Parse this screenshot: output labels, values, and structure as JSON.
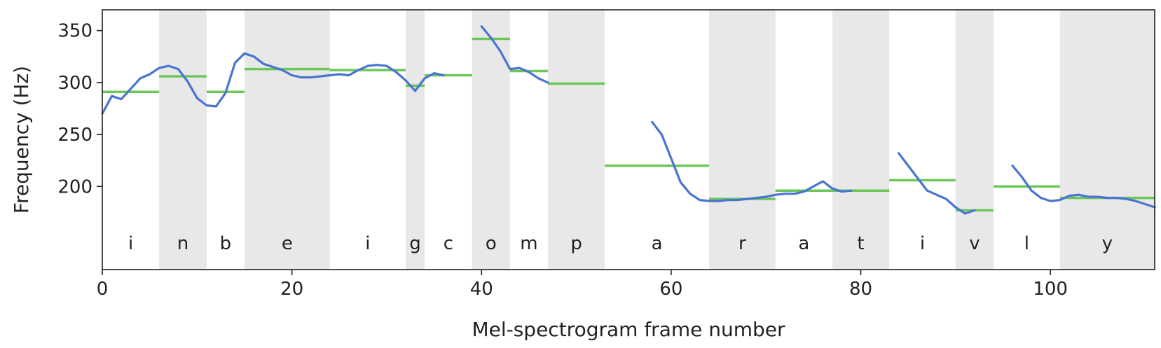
{
  "chart_data": {
    "type": "line",
    "title": "",
    "xlabel": "Mel-spectrogram frame number",
    "ylabel": "Frequency (Hz)",
    "xlim": [
      0,
      111
    ],
    "ylim": [
      120,
      370
    ],
    "x_ticks": [
      0,
      20,
      40,
      60,
      80,
      100
    ],
    "y_ticks": [
      200,
      250,
      300,
      350
    ],
    "grid": false,
    "colors": {
      "f0_line": "#4a74d1",
      "phone_mean": "#6cc75a",
      "shade": "#e8e8e8"
    },
    "segments": [
      {
        "label": "i",
        "start": 0,
        "end": 6,
        "shaded": false,
        "mean": 291
      },
      {
        "label": "n",
        "start": 6,
        "end": 11,
        "shaded": true,
        "mean": 306
      },
      {
        "label": "b",
        "start": 11,
        "end": 15,
        "shaded": false,
        "mean": 291
      },
      {
        "label": "e",
        "start": 15,
        "end": 24,
        "shaded": true,
        "mean": 313
      },
      {
        "label": "i",
        "start": 24,
        "end": 32,
        "shaded": false,
        "mean": 312
      },
      {
        "label": "g",
        "start": 32,
        "end": 34,
        "shaded": true,
        "mean": 297
      },
      {
        "label": "c",
        "start": 34,
        "end": 39,
        "shaded": false,
        "mean": 307
      },
      {
        "label": "o",
        "start": 39,
        "end": 43,
        "shaded": true,
        "mean": 342
      },
      {
        "label": "m",
        "start": 43,
        "end": 47,
        "shaded": false,
        "mean": 311
      },
      {
        "label": "p",
        "start": 47,
        "end": 53,
        "shaded": true,
        "mean": 299
      },
      {
        "label": "a",
        "start": 53,
        "end": 64,
        "shaded": false,
        "mean": 220
      },
      {
        "label": "r",
        "start": 64,
        "end": 71,
        "shaded": true,
        "mean": 188
      },
      {
        "label": "a",
        "start": 71,
        "end": 77,
        "shaded": false,
        "mean": 196
      },
      {
        "label": "t",
        "start": 77,
        "end": 83,
        "shaded": true,
        "mean": 196
      },
      {
        "label": "i",
        "start": 83,
        "end": 90,
        "shaded": false,
        "mean": 206
      },
      {
        "label": "v",
        "start": 90,
        "end": 94,
        "shaded": true,
        "mean": 177
      },
      {
        "label": "l",
        "start": 94,
        "end": 101,
        "shaded": false,
        "mean": 200
      },
      {
        "label": "y",
        "start": 101,
        "end": 111,
        "shaded": true,
        "mean": 189
      }
    ],
    "f0_series": [
      [
        [
          0,
          270
        ],
        [
          1,
          287
        ],
        [
          2,
          284
        ],
        [
          3,
          294
        ],
        [
          4,
          304
        ],
        [
          5,
          308
        ],
        [
          6,
          314
        ],
        [
          7,
          316
        ],
        [
          8,
          313
        ],
        [
          9,
          301
        ],
        [
          10,
          285
        ],
        [
          11,
          278
        ],
        [
          12,
          277
        ],
        [
          13,
          290
        ],
        [
          14,
          319
        ],
        [
          15,
          328
        ],
        [
          16,
          325
        ],
        [
          17,
          318
        ],
        [
          18,
          315
        ],
        [
          19,
          312
        ],
        [
          20,
          307
        ],
        [
          21,
          305
        ],
        [
          22,
          305
        ],
        [
          23,
          306
        ],
        [
          24,
          307
        ],
        [
          25,
          308
        ],
        [
          26,
          307
        ],
        [
          27,
          312
        ],
        [
          28,
          316
        ],
        [
          29,
          317
        ],
        [
          30,
          316
        ],
        [
          31,
          310
        ],
        [
          32,
          302
        ],
        [
          33,
          292
        ],
        [
          34,
          304
        ],
        [
          35,
          309
        ],
        [
          36,
          307
        ]
      ],
      [
        [
          40,
          354
        ],
        [
          41,
          343
        ],
        [
          42,
          330
        ],
        [
          43,
          313
        ],
        [
          44,
          314
        ],
        [
          45,
          310
        ],
        [
          46,
          304
        ],
        [
          47,
          300
        ]
      ],
      [
        [
          58,
          262
        ],
        [
          59,
          250
        ],
        [
          60,
          227
        ],
        [
          61,
          204
        ],
        [
          62,
          193
        ],
        [
          63,
          187
        ],
        [
          64,
          186
        ],
        [
          65,
          186
        ],
        [
          66,
          187
        ],
        [
          67,
          187
        ],
        [
          68,
          188
        ],
        [
          69,
          189
        ],
        [
          70,
          190
        ],
        [
          71,
          192
        ],
        [
          72,
          193
        ],
        [
          73,
          193
        ],
        [
          74,
          195
        ],
        [
          75,
          200
        ],
        [
          76,
          205
        ],
        [
          77,
          198
        ],
        [
          78,
          195
        ],
        [
          79,
          196
        ]
      ],
      [
        [
          84,
          232
        ],
        [
          85,
          220
        ],
        [
          86,
          208
        ],
        [
          87,
          196
        ],
        [
          88,
          192
        ],
        [
          89,
          188
        ],
        [
          90,
          180
        ],
        [
          91,
          174
        ],
        [
          92,
          177
        ]
      ],
      [
        [
          96,
          220
        ],
        [
          97,
          209
        ],
        [
          98,
          196
        ],
        [
          99,
          189
        ],
        [
          100,
          186
        ],
        [
          101,
          187
        ],
        [
          102,
          191
        ],
        [
          103,
          192
        ],
        [
          104,
          190
        ],
        [
          105,
          190
        ],
        [
          106,
          189
        ],
        [
          107,
          189
        ],
        [
          108,
          188
        ],
        [
          109,
          186
        ],
        [
          110,
          183
        ],
        [
          111,
          180
        ]
      ]
    ]
  }
}
